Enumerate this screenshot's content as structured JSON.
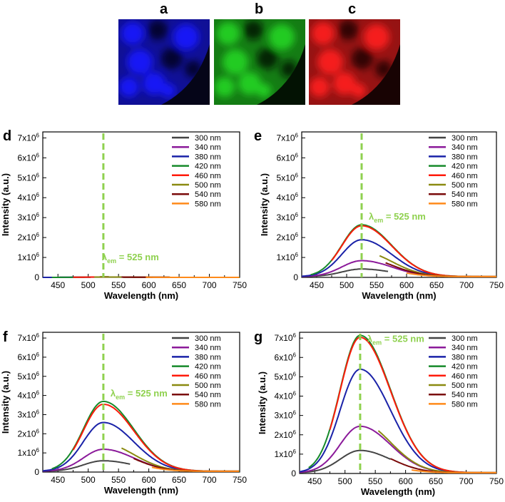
{
  "images": [
    {
      "label": "a",
      "color": "#1a1aff",
      "dark": "#050518"
    },
    {
      "label": "b",
      "color": "#22d422",
      "dark": "#031203"
    },
    {
      "label": "c",
      "color": "#ff2020",
      "dark": "#180303"
    }
  ],
  "legend_series": [
    {
      "name": "300 nm",
      "color": "#444444"
    },
    {
      "name": "340 nm",
      "color": "#8b1a9a"
    },
    {
      "name": "380 nm",
      "color": "#1a22a8"
    },
    {
      "name": "420 nm",
      "color": "#168a2a"
    },
    {
      "name": "460 nm",
      "color": "#ff1a0a"
    },
    {
      "name": "500 nm",
      "color": "#8a8a10"
    },
    {
      "name": "540 nm",
      "color": "#7a0a0a"
    },
    {
      "name": "580 nm",
      "color": "#ff8a1a"
    }
  ],
  "emission_line_color": "#8fd14f",
  "chart_data": [
    {
      "panel": "d",
      "type": "line",
      "xlabel": "Wavelength (nm)",
      "ylabel": "Intensity (a.u.)",
      "xlim": [
        425,
        750
      ],
      "ylim": [
        0,
        7.3
      ],
      "xticks": [
        "450",
        "500",
        "550",
        "600",
        "650",
        "700",
        "750"
      ],
      "yticks": [
        "0",
        "1x10",
        "2x10",
        "3x10",
        "4x10",
        "5x10",
        "6x10",
        "7x10"
      ],
      "ytick_exponent": "6",
      "annotation": {
        "lambda": "λ",
        "sub": "em",
        "text": "= 525 nm",
        "x": 525
      },
      "series": [
        {
          "name": "300 nm",
          "start": 425,
          "end": 750,
          "peak": 0.02
        },
        {
          "name": "340 nm",
          "start": 425,
          "end": 750,
          "peak": 0.02
        },
        {
          "name": "380 nm",
          "start": 425,
          "end": 750,
          "peak": 0.02
        },
        {
          "name": "420 nm",
          "start": 440,
          "end": 750,
          "peak": 0.02
        },
        {
          "name": "460 nm",
          "start": 475,
          "end": 750,
          "peak": 0.02
        },
        {
          "name": "500 nm",
          "start": 510,
          "end": 750,
          "peak": 0.02
        },
        {
          "name": "540 nm",
          "start": 555,
          "end": 750,
          "peak": 0.02
        },
        {
          "name": "580 nm",
          "start": 595,
          "end": 750,
          "peak": 0.02
        }
      ]
    },
    {
      "panel": "e",
      "type": "line",
      "xlabel": "Wavelength (nm)",
      "ylabel": "Intensity (a.u.)",
      "xlim": [
        425,
        750
      ],
      "ylim": [
        0,
        7.3
      ],
      "xticks": [
        "450",
        "500",
        "550",
        "600",
        "650",
        "700",
        "750"
      ],
      "yticks": [
        "0",
        "1x10",
        "2x10",
        "3x10",
        "4x10",
        "5x10",
        "6x10",
        "7x10"
      ],
      "ytick_exponent": "6",
      "annotation": {
        "lambda": "λ",
        "sub": "em",
        "text": "= 525 nm",
        "x": 525
      },
      "series": [
        {
          "name": "300 nm",
          "start": 425,
          "end": 570,
          "peak": 0.38
        },
        {
          "name": "340 nm",
          "start": 425,
          "end": 640,
          "peak": 0.8
        },
        {
          "name": "380 nm",
          "start": 425,
          "end": 690,
          "peak": 1.85
        },
        {
          "name": "420 nm",
          "start": 440,
          "end": 750,
          "peak": 2.6
        },
        {
          "name": "460 nm",
          "start": 475,
          "end": 750,
          "peak": 2.55
        },
        {
          "name": "500 nm",
          "start": 555,
          "end": 750,
          "peak": 1.25
        },
        {
          "name": "540 nm",
          "start": 565,
          "end": 750,
          "peak": 0.95
        },
        {
          "name": "580 nm",
          "start": 600,
          "end": 750,
          "peak": 0.55
        }
      ]
    },
    {
      "panel": "f",
      "type": "line",
      "xlabel": "Wavelength (nm)",
      "ylabel": "Intensity (a.u.)",
      "xlim": [
        425,
        750
      ],
      "ylim": [
        0,
        7.3
      ],
      "xticks": [
        "450",
        "500",
        "550",
        "600",
        "650",
        "700",
        "750"
      ],
      "yticks": [
        "0",
        "1x10",
        "2x10",
        "3x10",
        "4x10",
        "5x10",
        "6x10",
        "7x10"
      ],
      "ytick_exponent": "6",
      "annotation": {
        "lambda": "λ",
        "sub": "em",
        "text": "= 525 nm",
        "x": 525
      },
      "series": [
        {
          "name": "300 nm",
          "start": 425,
          "end": 570,
          "peak": 0.55
        },
        {
          "name": "340 nm",
          "start": 425,
          "end": 645,
          "peak": 1.15
        },
        {
          "name": "380 nm",
          "start": 425,
          "end": 690,
          "peak": 2.55
        },
        {
          "name": "420 nm",
          "start": 440,
          "end": 750,
          "peak": 3.65
        },
        {
          "name": "460 nm",
          "start": 475,
          "end": 750,
          "peak": 3.5
        },
        {
          "name": "500 nm",
          "start": 555,
          "end": 750,
          "peak": 1.45
        },
        {
          "name": "540 nm",
          "start": 575,
          "end": 750,
          "peak": 1.1
        },
        {
          "name": "580 nm",
          "start": 605,
          "end": 750,
          "peak": 0.75
        }
      ]
    },
    {
      "panel": "g",
      "type": "line",
      "xlabel": "Wavelength (nm)",
      "ylabel": "Intensity (a.u.)",
      "xlim": [
        425,
        750
      ],
      "ylim": [
        0,
        7.3
      ],
      "xticks": [
        "450",
        "500",
        "550",
        "600",
        "650",
        "700",
        "750"
      ],
      "yticks": [
        "0",
        "1x10",
        "2x10",
        "3x10",
        "4x10",
        "5x10",
        "6x10",
        "7x10"
      ],
      "ytick_exponent": "6",
      "annotation": {
        "lambda": "λ",
        "sub": "em",
        "text": "= 525 nm",
        "x": 525
      },
      "series": [
        {
          "name": "300 nm",
          "start": 425,
          "end": 575,
          "peak": 1.15
        },
        {
          "name": "340 nm",
          "start": 425,
          "end": 645,
          "peak": 2.4
        },
        {
          "name": "380 nm",
          "start": 425,
          "end": 700,
          "peak": 5.35
        },
        {
          "name": "420 nm",
          "start": 440,
          "end": 750,
          "peak": 7.1
        },
        {
          "name": "460 nm",
          "start": 475,
          "end": 750,
          "peak": 7.0
        },
        {
          "name": "500 nm",
          "start": 555,
          "end": 750,
          "peak": 2.6
        },
        {
          "name": "540 nm",
          "start": 575,
          "end": 750,
          "peak": 1.2
        },
        {
          "name": "580 nm",
          "start": 610,
          "end": 750,
          "peak": 0.6
        }
      ]
    }
  ]
}
